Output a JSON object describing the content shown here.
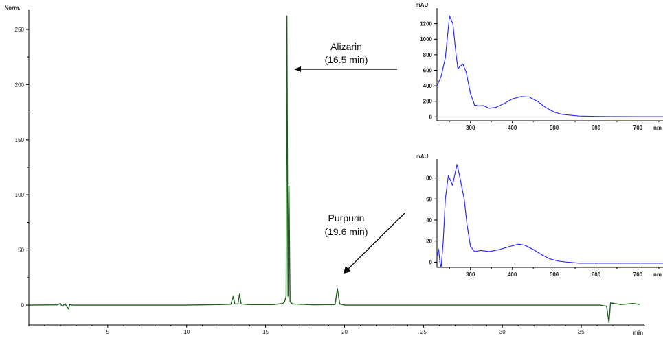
{
  "chart_data": [
    {
      "type": "line",
      "ylabel": "Norm.",
      "xlabel": "min",
      "xlim": [
        0,
        39
      ],
      "ylim": [
        -18,
        268
      ],
      "x_ticks": [
        5,
        10,
        15,
        20,
        25,
        30,
        35
      ],
      "y_ticks": [
        0,
        50,
        100,
        150,
        200,
        250
      ],
      "grid": false,
      "color": "#1f5c1f",
      "series": [
        {
          "points": [
            [
              0.0,
              0.0
            ],
            [
              1.8,
              0.2
            ],
            [
              2.0,
              1.5
            ],
            [
              2.1,
              -1.0
            ],
            [
              2.3,
              1.2
            ],
            [
              2.5,
              -3.5
            ],
            [
              2.6,
              0.5
            ],
            [
              2.8,
              0.0
            ],
            [
              5.0,
              0.0
            ],
            [
              10.0,
              0.0
            ],
            [
              11.2,
              0.3
            ],
            [
              12.0,
              0.5
            ],
            [
              12.8,
              0.8
            ],
            [
              12.95,
              8.0
            ],
            [
              13.05,
              1.0
            ],
            [
              13.25,
              1.0
            ],
            [
              13.35,
              10.0
            ],
            [
              13.45,
              1.0
            ],
            [
              14.0,
              0.5
            ],
            [
              15.5,
              0.5
            ],
            [
              16.1,
              1.5
            ],
            [
              16.2,
              3.0
            ],
            [
              16.3,
              8.0
            ],
            [
              16.35,
              262.0
            ],
            [
              16.42,
              8.0
            ],
            [
              16.48,
              108.0
            ],
            [
              16.55,
              3.0
            ],
            [
              16.7,
              1.0
            ],
            [
              18.0,
              0.3
            ],
            [
              19.4,
              0.5
            ],
            [
              19.55,
              15.0
            ],
            [
              19.7,
              1.0
            ],
            [
              20.0,
              0.0
            ],
            [
              25.0,
              0.0
            ],
            [
              30.0,
              0.0
            ],
            [
              36.2,
              0.0
            ],
            [
              36.6,
              -1.0
            ],
            [
              36.75,
              -16.0
            ],
            [
              36.85,
              2.0
            ],
            [
              37.5,
              0.5
            ],
            [
              38.3,
              1.5
            ],
            [
              38.7,
              0.5
            ]
          ]
        }
      ]
    },
    {
      "type": "line",
      "ylabel": "mAU",
      "xlabel": "nm",
      "xlim": [
        220,
        760
      ],
      "ylim": [
        -50,
        1400
      ],
      "x_ticks": [
        300,
        400,
        500,
        600,
        700
      ],
      "y_ticks": [
        0,
        200,
        400,
        600,
        800,
        1000,
        1200
      ],
      "grid": false,
      "color": "#2b2bff",
      "series": [
        {
          "points": [
            [
              220,
              400
            ],
            [
              230,
              520
            ],
            [
              240,
              760
            ],
            [
              250,
              1300
            ],
            [
              258,
              1200
            ],
            [
              265,
              830
            ],
            [
              270,
              620
            ],
            [
              275,
              650
            ],
            [
              282,
              680
            ],
            [
              290,
              570
            ],
            [
              300,
              300
            ],
            [
              310,
              150
            ],
            [
              320,
              140
            ],
            [
              330,
              145
            ],
            [
              345,
              110
            ],
            [
              360,
              120
            ],
            [
              380,
              170
            ],
            [
              400,
              230
            ],
            [
              420,
              260
            ],
            [
              440,
              255
            ],
            [
              460,
              200
            ],
            [
              480,
              120
            ],
            [
              500,
              60
            ],
            [
              520,
              30
            ],
            [
              540,
              20
            ],
            [
              560,
              10
            ],
            [
              600,
              5
            ],
            [
              650,
              3
            ],
            [
              700,
              2
            ],
            [
              760,
              2
            ]
          ]
        }
      ]
    },
    {
      "type": "line",
      "ylabel": "mAU",
      "xlabel": "nm",
      "xlim": [
        220,
        760
      ],
      "ylim": [
        -5,
        98
      ],
      "x_ticks": [
        300,
        400,
        500,
        600,
        700
      ],
      "y_ticks": [
        0,
        20,
        40,
        60,
        80
      ],
      "grid": false,
      "color": "#2b2bff",
      "series": [
        {
          "points": [
            [
              220,
              5
            ],
            [
              224,
              12
            ],
            [
              227,
              0
            ],
            [
              230,
              -5
            ],
            [
              235,
              20
            ],
            [
              240,
              60
            ],
            [
              247,
              82
            ],
            [
              252,
              78
            ],
            [
              257,
              73
            ],
            [
              262,
              82
            ],
            [
              268,
              93
            ],
            [
              275,
              80
            ],
            [
              285,
              60
            ],
            [
              292,
              35
            ],
            [
              300,
              15
            ],
            [
              310,
              10
            ],
            [
              325,
              11
            ],
            [
              345,
              10
            ],
            [
              370,
              12
            ],
            [
              395,
              15
            ],
            [
              415,
              17
            ],
            [
              430,
              16
            ],
            [
              450,
              12
            ],
            [
              470,
              7
            ],
            [
              490,
              3
            ],
            [
              510,
              1
            ],
            [
              530,
              0
            ],
            [
              560,
              -1
            ],
            [
              600,
              -1
            ],
            [
              700,
              -1
            ],
            [
              760,
              -1
            ]
          ]
        }
      ]
    }
  ],
  "annotations": {
    "alizarin_name": "Alizarin",
    "alizarin_time": "(16.5 min)",
    "purpurin_name": "Purpurin",
    "purpurin_time": "(19.6 min)"
  }
}
